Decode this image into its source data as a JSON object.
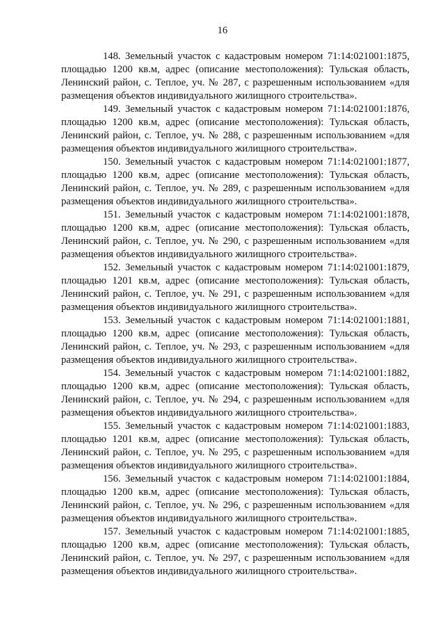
{
  "page_number": "16",
  "entries": [
    {
      "lines": [
        "148. Земельный участок с кадастровым номером 71:14:021001:1875,",
        "площадью 1200 кв.м, адрес (описание местоположения): Тульская область,",
        "Ленинский район, с. Теплое, уч. № 287, с разрешенным использованием «для",
        "размещения объектов индивидуального жилищного строительства»."
      ]
    },
    {
      "lines": [
        "149. Земельный участок с кадастровым номером 71:14:021001:1876,",
        "площадью 1200 кв.м, адрес (описание местоположения): Тульская область,",
        "Ленинский район, с. Теплое, уч. № 288, с разрешенным использованием «для",
        "размещения объектов индивидуального жилищного строительства»."
      ]
    },
    {
      "lines": [
        "150. Земельный участок с кадастровым номером 71:14:021001:1877,",
        "площадью 1200 кв.м, адрес (описание местоположения): Тульская область,",
        "Ленинский район, с. Теплое, уч. № 289, с разрешенным использованием «для",
        "размещения объектов индивидуального жилищного строительства»."
      ]
    },
    {
      "lines": [
        "151. Земельный участок с кадастровым номером 71:14:021001:1878,",
        "площадью 1200 кв.м, адрес (описание местоположения): Тульская область,",
        "Ленинский район, с. Теплое, уч. № 290, с разрешенным использованием «для",
        "размещения объектов индивидуального жилищного строительства»."
      ]
    },
    {
      "lines": [
        "152. Земельный участок с кадастровым номером 71:14:021001:1879,",
        "площадью 1201 кв.м, адрес (описание местоположения): Тульская область,",
        "Ленинский район, с. Теплое, уч. № 291, с разрешенным использованием «для",
        "размещения объектов индивидуального жилищного строительства»."
      ]
    },
    {
      "lines": [
        "153. Земельный участок с кадастровым номером 71:14:021001:1881,",
        "площадью 1200 кв.м, адрес (описание местоположения): Тульская область,",
        "Ленинский район, с. Теплое, уч. № 293, с разрешенным использованием «для",
        "размещения объектов индивидуального жилищного строительства»."
      ]
    },
    {
      "lines": [
        "154. Земельный участок с кадастровым номером 71:14:021001:1882,",
        "площадью 1200 кв.м, адрес (описание местоположения): Тульская область,",
        "Ленинский район, с. Теплое, уч. № 294, с разрешенным использованием «для",
        "размещения объектов индивидуального жилищного строительства»."
      ]
    },
    {
      "lines": [
        "155. Земельный участок с кадастровым номером 71:14:021001:1883,",
        "площадью 1201 кв.м, адрес (описание местоположения): Тульская область,",
        "Ленинский район, с. Теплое, уч. № 295, с разрешенным использованием «для",
        "размещения объектов индивидуального жилищного строительства»."
      ]
    },
    {
      "lines": [
        "156. Земельный участок с кадастровым номером 71:14:021001:1884,",
        "площадью 1200 кв.м, адрес (описание местоположения): Тульская область,",
        "Ленинский район, с. Теплое, уч. № 296, с разрешенным использованием «для",
        "размещения объектов индивидуального жилищного строительства»."
      ]
    },
    {
      "lines": [
        "157. Земельный участок с кадастровым номером 71:14:021001:1885,",
        "площадью 1200 кв.м, адрес (описание местоположения): Тульская область,",
        "Ленинский район, с. Теплое, уч. № 297, с разрешенным использованием «для",
        "размещения объектов индивидуального жилищного строительства»."
      ]
    }
  ]
}
